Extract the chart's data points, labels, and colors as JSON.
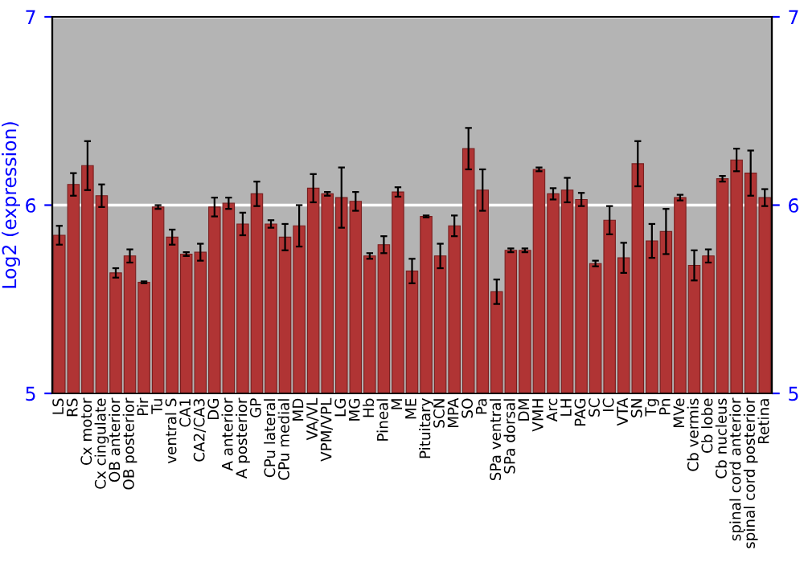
{
  "chart_data": {
    "type": "bar",
    "ylabel": "Log2 (expression)",
    "categories": [
      "LS",
      "RS",
      "Cx motor",
      "Cx cingulate",
      "OB anterior",
      "OB posterior",
      "Pir",
      "Tu",
      "ventral S",
      "CA1",
      "CA2/CA3",
      "DG",
      "A anterior",
      "A posterior",
      "GP",
      "CPu lateral",
      "CPu medial",
      "MD",
      "VA/VL",
      "VPM/VPL",
      "LG",
      "MG",
      "Hb",
      "Pineal",
      "M",
      "ME",
      "Pituitary",
      "SCN",
      "MPA",
      "SO",
      "Pa",
      "SPa ventral",
      "SPa dorsal",
      "DM",
      "VMH",
      "Arc",
      "LH",
      "PAG",
      "SC",
      "IC",
      "VTA",
      "SN",
      "Tg",
      "Pn",
      "MVe",
      "Cb vermis",
      "Cb lobe",
      "Cb nucleus",
      "spinal cord anterior",
      "spinal cord posterior",
      "Retina"
    ],
    "series": [
      {
        "color": "#b03434",
        "values": [
          5.84,
          6.11,
          6.21,
          6.05,
          5.64,
          5.73,
          5.59,
          5.99,
          5.83,
          5.74,
          5.75,
          5.99,
          6.01,
          5.9,
          6.06,
          5.9,
          5.83,
          5.89,
          6.09,
          6.06,
          6.04,
          6.02,
          5.73,
          5.79,
          6.07,
          5.65,
          5.94,
          5.73,
          5.89,
          6.3,
          6.08,
          5.54,
          5.76,
          5.76,
          6.19,
          6.06,
          6.08,
          6.03,
          5.69,
          5.92,
          5.72,
          6.22,
          5.81,
          5.86,
          6.04,
          5.68,
          5.73,
          6.14,
          6.24,
          6.17,
          6.04
        ],
        "errors": [
          0.05,
          0.06,
          0.13,
          0.06,
          0.025,
          0.035,
          0.005,
          0.01,
          0.04,
          0.01,
          0.045,
          0.05,
          0.03,
          0.06,
          0.065,
          0.02,
          0.07,
          0.11,
          0.075,
          0.01,
          0.16,
          0.05,
          0.015,
          0.045,
          0.025,
          0.065,
          0.005,
          0.065,
          0.055,
          0.11,
          0.11,
          0.065,
          0.01,
          0.01,
          0.01,
          0.03,
          0.065,
          0.035,
          0.015,
          0.075,
          0.08,
          0.12,
          0.09,
          0.12,
          0.015,
          0.08,
          0.035,
          0.015,
          0.06,
          0.12,
          0.045
        ]
      }
    ],
    "ylim": [
      5,
      7
    ],
    "yticks": [
      5,
      6,
      7
    ],
    "y2lim": [
      5,
      7
    ],
    "y2ticks": [
      5,
      6,
      7
    ],
    "grid": "y"
  }
}
